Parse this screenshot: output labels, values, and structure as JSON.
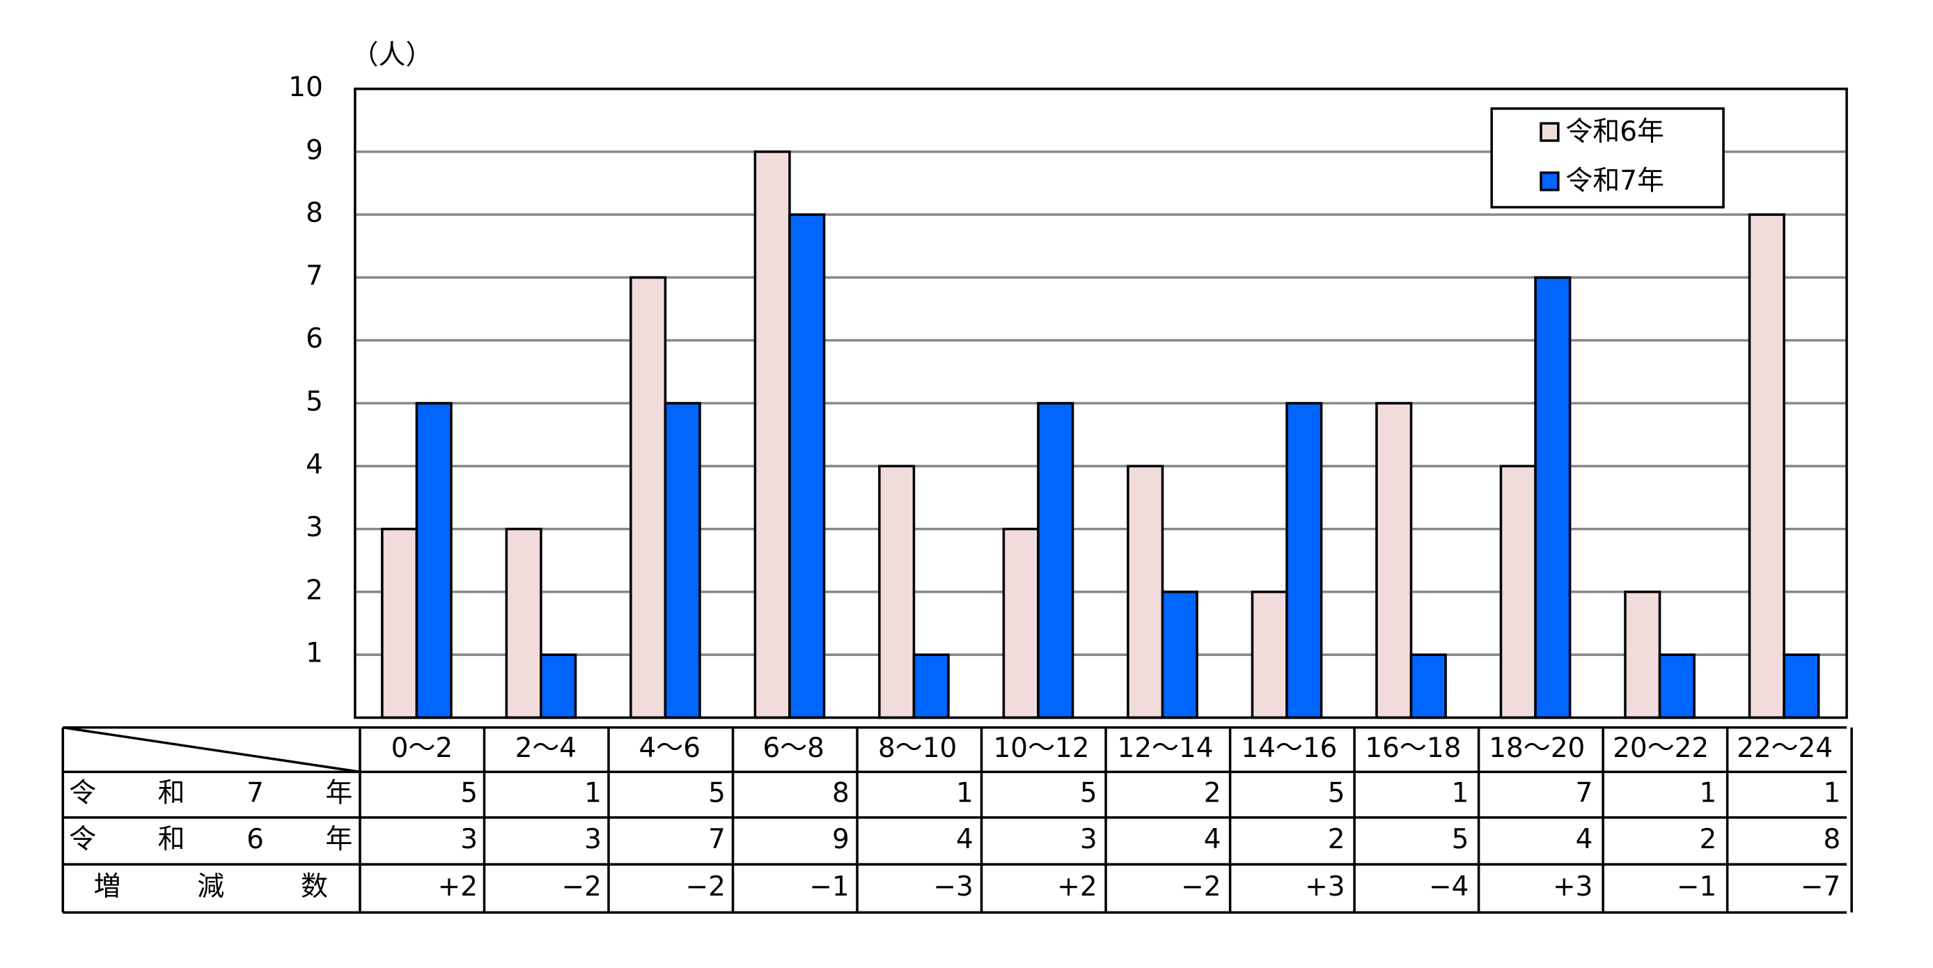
{
  "chart_data": {
    "type": "bar",
    "y_unit": "（人）",
    "categories": [
      "0～2",
      "2～4",
      "4～6",
      "6～8",
      "8～10",
      "10～12",
      "12～14",
      "14～16",
      "16～18",
      "18～20",
      "20～22",
      "22～24"
    ],
    "series": [
      {
        "name": "令和6年",
        "color": "#f2dcdb",
        "values": [
          3,
          3,
          7,
          9,
          4,
          3,
          4,
          2,
          5,
          4,
          2,
          8
        ]
      },
      {
        "name": "令和7年",
        "color": "#0066ff",
        "values": [
          5,
          1,
          5,
          8,
          1,
          5,
          2,
          5,
          1,
          7,
          1,
          1
        ]
      }
    ],
    "ylim": [
      0,
      10
    ],
    "yticks": [
      1,
      2,
      3,
      4,
      5,
      6,
      7,
      8,
      9,
      10
    ],
    "grid": true,
    "legend": "top-right",
    "table": {
      "change_label": "増減数",
      "change": [
        2,
        -2,
        -2,
        -1,
        -3,
        2,
        -2,
        3,
        -4,
        3,
        -1,
        -7
      ],
      "change_labels": [
        "+2",
        "−2",
        "−2",
        "−1",
        "−3",
        "+2",
        "−2",
        "+3",
        "−4",
        "+3",
        "−1",
        "−7"
      ]
    }
  }
}
